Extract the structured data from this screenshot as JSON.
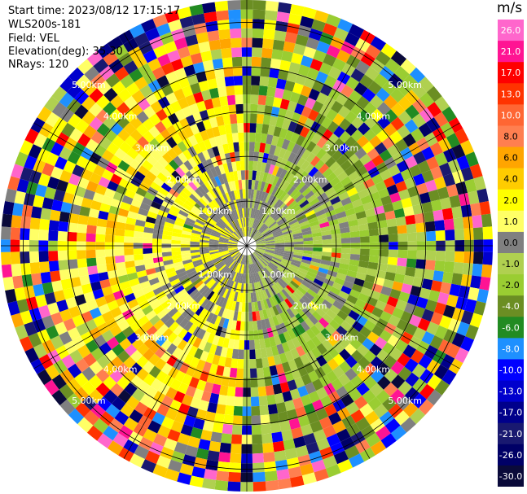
{
  "header": {
    "start_time": "Start time: 2023/08/12 17:15:17",
    "instrument": "WLS200s-181",
    "field": "Field: VEL",
    "elevation": "Elevation(deg): 35.30",
    "nrays": "NRays: 120"
  },
  "colorbar": {
    "unit": "m/s",
    "ticks": [
      "26.0",
      "21.0",
      "17.0",
      "13.0",
      "10.0",
      "8.0",
      "6.0",
      "4.0",
      "2.0",
      "1.0",
      "0.0",
      "-1.0",
      "-2.0",
      "-4.0",
      "-6.0",
      "-8.0",
      "-10.0",
      "-13.0",
      "-17.0",
      "-21.0",
      "-26.0",
      "-30.0"
    ],
    "colors": [
      "#ff66cc",
      "#ff1493",
      "#ff0000",
      "#ff3300",
      "#ff6633",
      "#ff7f50",
      "#ffa500",
      "#ffcc00",
      "#ffff00",
      "#ffff66",
      "#808080",
      "#b0d050",
      "#9acd32",
      "#6b8e23",
      "#228b22",
      "#1e90ff",
      "#0000ff",
      "#0000cd",
      "#00008b",
      "#191970",
      "#000066",
      "#0a0a3a"
    ]
  },
  "chart_data": {
    "type": "heatmap",
    "projection": "polar PPI scan",
    "field": "VEL",
    "units": "m/s",
    "n_rays": 120,
    "elevation_deg": 35.3,
    "range_ring_labels": [
      "1.00km",
      "2.00km",
      "3.00km",
      "4.00km",
      "5.00km"
    ],
    "range_rings_km": [
      1,
      2,
      3,
      4,
      5
    ],
    "color_scale_range": [
      -30,
      26
    ],
    "grid": true
  }
}
